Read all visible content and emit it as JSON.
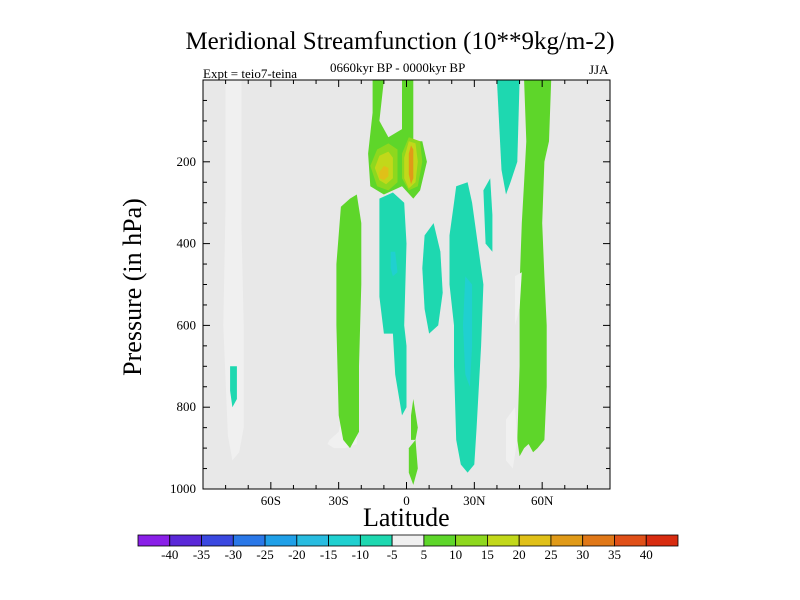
{
  "chart_data": {
    "type": "contour",
    "title": "Meridional Streamfunction (10**9kg/m-2)",
    "subtitle_left": "Expt = teio7-teina",
    "subtitle_center": "0660kyr BP - 0000kyr BP",
    "subtitle_right": "JJA",
    "xlabel": "Latitude",
    "ylabel": "Pressure (in hPa)",
    "xlim": [
      -90,
      90
    ],
    "ylim": [
      1000,
      0
    ],
    "x_ticks": [
      {
        "value": -60,
        "label": "60S"
      },
      {
        "value": -30,
        "label": "30S"
      },
      {
        "value": 0,
        "label": "0"
      },
      {
        "value": 30,
        "label": "30N"
      },
      {
        "value": 60,
        "label": "60N"
      }
    ],
    "y_ticks": [
      {
        "value": 200,
        "label": "200"
      },
      {
        "value": 400,
        "label": "400"
      },
      {
        "value": 600,
        "label": "600"
      },
      {
        "value": 800,
        "label": "800"
      },
      {
        "value": 1000,
        "label": "1000"
      }
    ],
    "contour_levels": [
      -40,
      -35,
      -30,
      -25,
      -20,
      -15,
      -10,
      -5,
      5,
      10,
      15,
      20,
      25,
      30,
      35,
      40
    ],
    "colorbar_labels": [
      "-40",
      "-35",
      "-30",
      "-25",
      "-20",
      "-15",
      "-10",
      "-5",
      "5",
      "10",
      "15",
      "20",
      "25",
      "30",
      "35",
      "40"
    ],
    "colorbar_colors": [
      "#8a20e8",
      "#5a28d8",
      "#3a48e0",
      "#2a78e8",
      "#20a0e8",
      "#28bce0",
      "#20d0d0",
      "#1ed8b0",
      "#f0f0f0",
      "#5ed62a",
      "#8ed81e",
      "#c2d81a",
      "#e0c018",
      "#e09a18",
      "#e07818",
      "#e05018",
      "#d82c10"
    ],
    "background_color": "#e8e8e8",
    "regions": [
      {
        "band": 8,
        "pts": [
          [
            -80,
            0
          ],
          [
            -73,
            0
          ],
          [
            -73,
            350
          ],
          [
            -72,
            600
          ],
          [
            -72,
            850
          ],
          [
            -74,
            910
          ],
          [
            -77,
            930
          ],
          [
            -79,
            870
          ],
          [
            -81,
            600
          ],
          [
            -80,
            300
          ]
        ]
      },
      {
        "band": 7,
        "pts": [
          [
            -78,
            700
          ],
          [
            -75,
            700
          ],
          [
            -75,
            780
          ],
          [
            -77,
            800
          ],
          [
            -78,
            760
          ]
        ]
      },
      {
        "band": 8,
        "pts": [
          [
            -34,
            880
          ],
          [
            -30,
            860
          ],
          [
            -27,
            780
          ],
          [
            -25,
            700
          ],
          [
            -23,
            700
          ],
          [
            -22,
            800
          ],
          [
            -22,
            890
          ],
          [
            -27,
            900
          ],
          [
            -32,
            900
          ],
          [
            -35,
            890
          ]
        ]
      },
      {
        "band": 9,
        "pts": [
          [
            -29,
            310
          ],
          [
            -25,
            290
          ],
          [
            -22,
            280
          ],
          [
            -20,
            350
          ],
          [
            -20,
            500
          ],
          [
            -21,
            700
          ],
          [
            -21,
            860
          ],
          [
            -25,
            900
          ],
          [
            -28,
            880
          ],
          [
            -30,
            820
          ],
          [
            -31,
            600
          ],
          [
            -31,
            450
          ]
        ]
      },
      {
        "band": 9,
        "pts": [
          [
            -15,
            0
          ],
          [
            -15,
            80
          ],
          [
            -17,
            180
          ],
          [
            -16,
            260
          ],
          [
            -10,
            280
          ],
          [
            -2,
            260
          ],
          [
            3,
            290
          ],
          [
            6,
            270
          ],
          [
            9,
            200
          ],
          [
            7,
            150
          ],
          [
            3,
            150
          ],
          [
            3,
            0
          ],
          [
            -2,
            0
          ],
          [
            -2,
            120
          ],
          [
            -8,
            140
          ],
          [
            -12,
            100
          ],
          [
            -10,
            0
          ]
        ]
      },
      {
        "band": 10,
        "pts": [
          [
            -16,
            210
          ],
          [
            -13,
            170
          ],
          [
            -8,
            155
          ],
          [
            -4,
            170
          ],
          [
            -4,
            250
          ],
          [
            -8,
            270
          ],
          [
            -13,
            260
          ]
        ]
      },
      {
        "band": 10,
        "pts": [
          [
            -2,
            180
          ],
          [
            1,
            140
          ],
          [
            6,
            150
          ],
          [
            7,
            200
          ],
          [
            5,
            260
          ],
          [
            1,
            270
          ],
          [
            -2,
            240
          ]
        ]
      },
      {
        "band": 11,
        "pts": [
          [
            -14,
            215
          ],
          [
            -12,
            185
          ],
          [
            -8,
            175
          ],
          [
            -6,
            190
          ],
          [
            -6,
            240
          ],
          [
            -9,
            255
          ],
          [
            -12,
            245
          ]
        ]
      },
      {
        "band": 11,
        "pts": [
          [
            -1,
            190
          ],
          [
            1,
            150
          ],
          [
            4,
            155
          ],
          [
            5,
            200
          ],
          [
            4,
            250
          ],
          [
            1,
            265
          ],
          [
            -1,
            240
          ]
        ]
      },
      {
        "band": 12,
        "pts": [
          [
            -12,
            225
          ],
          [
            -10,
            210
          ],
          [
            -8,
            215
          ],
          [
            -8,
            235
          ],
          [
            -10,
            245
          ],
          [
            -12,
            240
          ]
        ]
      },
      {
        "band": 13,
        "pts": [
          [
            1,
            180
          ],
          [
            2,
            160
          ],
          [
            3,
            170
          ],
          [
            3,
            240
          ],
          [
            2,
            255
          ],
          [
            1,
            230
          ]
        ]
      },
      {
        "band": 7,
        "pts": [
          [
            -12,
            290
          ],
          [
            -6,
            275
          ],
          [
            -1,
            300
          ],
          [
            0,
            400
          ],
          [
            -1,
            600
          ],
          [
            0,
            650
          ],
          [
            0,
            800
          ],
          [
            -2,
            820
          ],
          [
            -5,
            720
          ],
          [
            -6,
            620
          ],
          [
            -10,
            620
          ],
          [
            -12,
            530
          ],
          [
            -12,
            420
          ]
        ]
      },
      {
        "band": 6,
        "pts": [
          [
            -7,
            420
          ],
          [
            -5,
            420
          ],
          [
            -4,
            470
          ],
          [
            -6,
            480
          ],
          [
            -7,
            460
          ]
        ]
      },
      {
        "band": 9,
        "pts": [
          [
            2,
            820
          ],
          [
            3,
            780
          ],
          [
            5,
            850
          ],
          [
            4,
            880
          ],
          [
            2,
            880
          ]
        ]
      },
      {
        "band": 9,
        "pts": [
          [
            1,
            900
          ],
          [
            4,
            880
          ],
          [
            5,
            950
          ],
          [
            3,
            990
          ],
          [
            1,
            960
          ]
        ]
      },
      {
        "band": 7,
        "pts": [
          [
            8,
            380
          ],
          [
            12,
            350
          ],
          [
            15,
            420
          ],
          [
            16,
            520
          ],
          [
            14,
            600
          ],
          [
            10,
            620
          ],
          [
            8,
            560
          ],
          [
            7,
            460
          ]
        ]
      },
      {
        "band": 7,
        "pts": [
          [
            19,
            380
          ],
          [
            21,
            300
          ],
          [
            22,
            260
          ],
          [
            27,
            250
          ],
          [
            29,
            300
          ],
          [
            31,
            380
          ],
          [
            34,
            500
          ],
          [
            33,
            650
          ],
          [
            31,
            850
          ],
          [
            30,
            940
          ],
          [
            27,
            960
          ],
          [
            24,
            940
          ],
          [
            22,
            880
          ],
          [
            21,
            700
          ],
          [
            21,
            600
          ],
          [
            19,
            500
          ]
        ]
      },
      {
        "band": 6,
        "pts": [
          [
            26,
            480
          ],
          [
            29,
            500
          ],
          [
            29,
            650
          ],
          [
            28,
            750
          ],
          [
            26,
            720
          ],
          [
            25,
            600
          ]
        ]
      },
      {
        "band": 7,
        "pts": [
          [
            34,
            270
          ],
          [
            37,
            240
          ],
          [
            38,
            330
          ],
          [
            38,
            420
          ],
          [
            35,
            400
          ]
        ]
      },
      {
        "band": 7,
        "pts": [
          [
            40,
            0
          ],
          [
            50,
            0
          ],
          [
            49,
            200
          ],
          [
            46,
            250
          ],
          [
            44,
            280
          ],
          [
            42,
            220
          ]
        ]
      },
      {
        "band": 9,
        "pts": [
          [
            52,
            0
          ],
          [
            64,
            0
          ],
          [
            63,
            150
          ],
          [
            61,
            200
          ],
          [
            60,
            350
          ],
          [
            61,
            480
          ],
          [
            62,
            600
          ],
          [
            62,
            750
          ],
          [
            61,
            880
          ],
          [
            58,
            900
          ],
          [
            56,
            910
          ],
          [
            54,
            890
          ],
          [
            52,
            900
          ],
          [
            50,
            920
          ],
          [
            49,
            880
          ],
          [
            50,
            700
          ],
          [
            50,
            500
          ],
          [
            51,
            350
          ],
          [
            52,
            250
          ],
          [
            53,
            150
          ]
        ]
      },
      {
        "band": 8,
        "pts": [
          [
            48,
            480
          ],
          [
            51,
            470
          ],
          [
            50,
            560
          ],
          [
            48,
            600
          ]
        ]
      },
      {
        "band": 8,
        "pts": [
          [
            44,
            830
          ],
          [
            48,
            800
          ],
          [
            49,
            880
          ],
          [
            47,
            950
          ],
          [
            44,
            930
          ]
        ]
      }
    ]
  }
}
